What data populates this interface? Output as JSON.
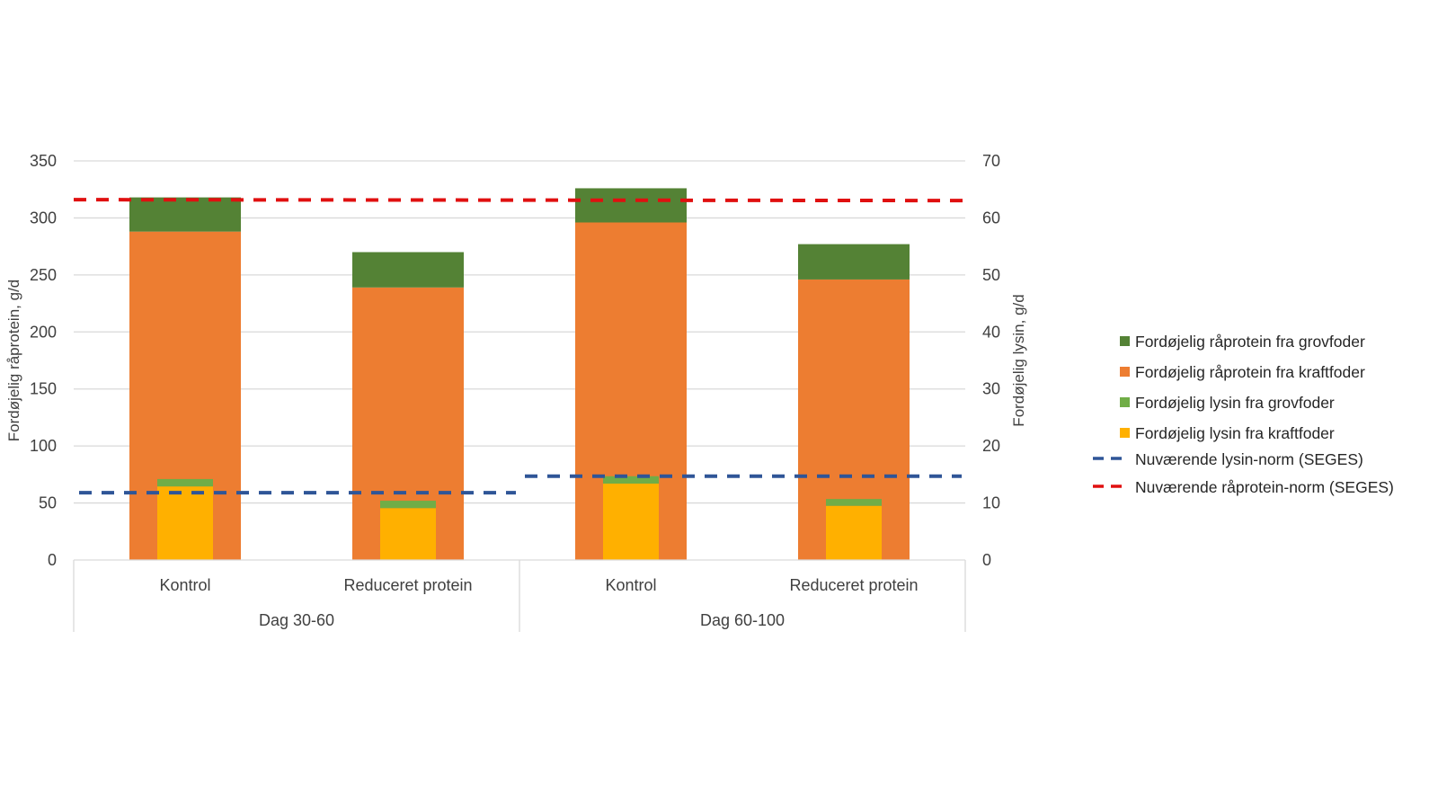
{
  "chart_data": {
    "type": "bar",
    "stacked": true,
    "title": "",
    "ylabel": "Fordøjelig råprotein, g/d",
    "ylabel_right": "Fordøjelig lysin, g/d",
    "ylim": [
      0,
      350
    ],
    "ylim_right": [
      0,
      70
    ],
    "yticks": [
      "0",
      "50",
      "100",
      "150",
      "200",
      "250",
      "300",
      "350"
    ],
    "yticks_right": [
      "0",
      "10",
      "20",
      "30",
      "40",
      "50",
      "60",
      "70"
    ],
    "grid": true,
    "legend_position": "right",
    "groups": [
      {
        "label": "Dag 30-60",
        "categories": [
          "Kontrol",
          "Reduceret protein"
        ]
      },
      {
        "label": "Dag 60-100",
        "categories": [
          "Kontrol",
          "Reduceret protein"
        ]
      }
    ],
    "categories": [
      "Kontrol",
      "Reduceret protein",
      "Kontrol",
      "Reduceret protein"
    ],
    "series": [
      {
        "name": "Fordøjelig råprotein fra grovfoder",
        "axis": "left",
        "stack": "protein",
        "color": "#548235",
        "values": [
          30,
          31,
          30,
          31
        ]
      },
      {
        "name": "Fordøjelig råprotein fra kraftfoder",
        "axis": "left",
        "stack": "protein",
        "color": "#ED7D31",
        "values": [
          288,
          239,
          296,
          246
        ]
      },
      {
        "name": "Fordøjelig lysin fra grovfoder",
        "axis": "right",
        "stack": "lysin",
        "color": "#70AD47",
        "values": [
          1.3,
          1.3,
          1.3,
          1.2
        ]
      },
      {
        "name": "Fordøjelig lysin fra kraftfoder",
        "axis": "right",
        "stack": "lysin",
        "color": "#FFB000",
        "values": [
          12.9,
          9.1,
          13.4,
          9.5
        ]
      }
    ],
    "reference_lines": [
      {
        "name": "Nuværende lysin-norm (SEGES)",
        "axis": "right",
        "color": "#2F5597",
        "style": "dashed",
        "values_by_group": [
          11.8,
          14.7
        ]
      },
      {
        "name": "Nuværende råprotein-norm (SEGES)",
        "axis": "left",
        "color": "#E01010",
        "style": "dashed",
        "value": 316
      }
    ],
    "legend": [
      {
        "label": "Fordøjelig råprotein fra grovfoder",
        "kind": "box",
        "color": "#548235"
      },
      {
        "label": "Fordøjelig råprotein fra kraftfoder",
        "kind": "box",
        "color": "#ED7D31"
      },
      {
        "label": "Fordøjelig lysin fra grovfoder",
        "kind": "box",
        "color": "#70AD47"
      },
      {
        "label": "Fordøjelig lysin fra kraftfoder",
        "kind": "box",
        "color": "#FFB000"
      },
      {
        "label": "Nuværende lysin-norm (SEGES)",
        "kind": "dash",
        "color": "#2F5597"
      },
      {
        "label": "Nuværende råprotein-norm (SEGES)",
        "kind": "dash",
        "color": "#E01010"
      }
    ]
  }
}
